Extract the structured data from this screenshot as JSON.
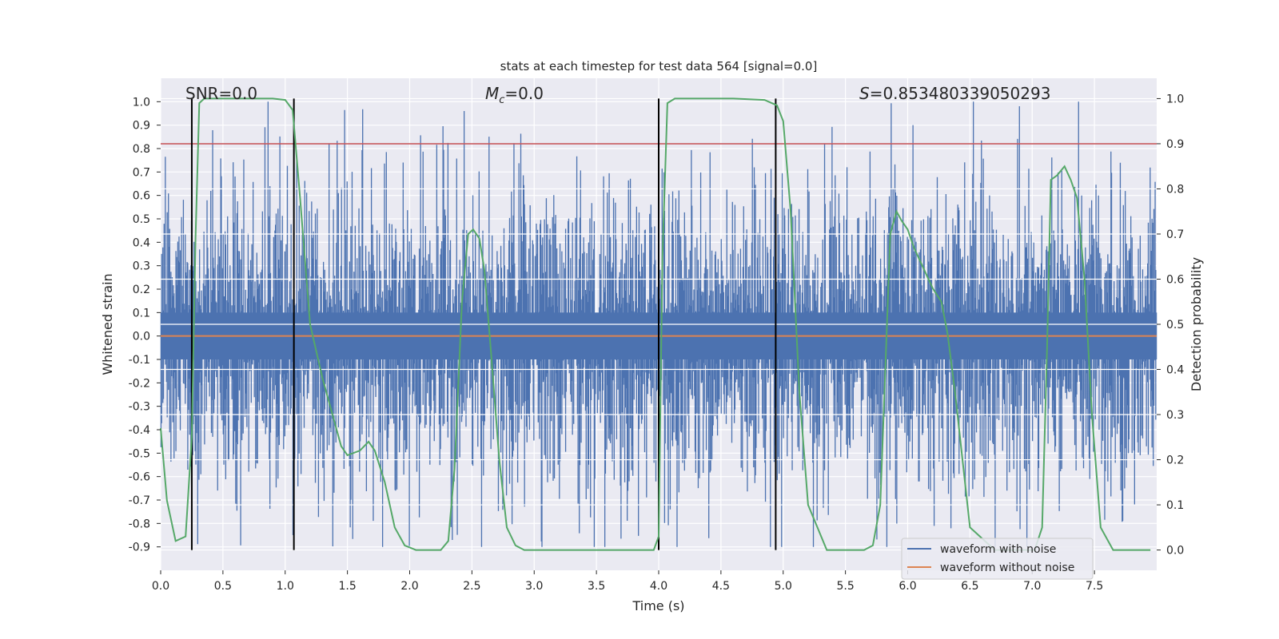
{
  "chart_data": {
    "type": "line",
    "title": "stats at each timestep for test data 564 [signal=0.0]",
    "xlabel": "Time (s)",
    "ylabel_left": "Whitened strain",
    "ylabel_right": "Detection probability",
    "xlim": [
      0.0,
      8.0
    ],
    "ylim_left": [
      -1.0,
      1.1
    ],
    "ylim_right": [
      -0.045,
      1.045
    ],
    "x_ticks": [
      "0.0",
      "0.5",
      "1.0",
      "1.5",
      "2.0",
      "2.5",
      "3.0",
      "3.5",
      "4.0",
      "4.5",
      "5.0",
      "5.5",
      "6.0",
      "6.5",
      "7.0",
      "7.5"
    ],
    "x_tick_values": [
      0.0,
      0.5,
      1.0,
      1.5,
      2.0,
      2.5,
      3.0,
      3.5,
      4.0,
      4.5,
      5.0,
      5.5,
      6.0,
      6.5,
      7.0,
      7.5
    ],
    "y_left_ticks": [
      "1.0",
      "0.9",
      "0.8",
      "0.7",
      "0.6",
      "0.5",
      "0.4",
      "0.3",
      "0.2",
      "0.1",
      "0.0",
      "-0.1",
      "-0.2",
      "-0.3",
      "-0.4",
      "-0.5",
      "-0.6",
      "-0.7",
      "-0.8",
      "-0.9"
    ],
    "y_left_tick_values": [
      1.0,
      0.9,
      0.8,
      0.7,
      0.6,
      0.5,
      0.4,
      0.3,
      0.2,
      0.1,
      0.0,
      -0.1,
      -0.2,
      -0.3,
      -0.4,
      -0.5,
      -0.6,
      -0.7,
      -0.8,
      -0.9
    ],
    "y_right_ticks": [
      "1.0",
      "0.9",
      "0.8",
      "0.7",
      "0.6",
      "0.5",
      "0.4",
      "0.3",
      "0.2",
      "0.1",
      "0.0"
    ],
    "y_right_tick_values": [
      1.0,
      0.9,
      0.8,
      0.7,
      0.6,
      0.5,
      0.4,
      0.3,
      0.2,
      0.1,
      0.0
    ],
    "grid": true,
    "annotations": [
      {
        "text": "SNR=0.0",
        "x": 0.2,
        "y": 1.02
      },
      {
        "text_main": "M",
        "text_sub": "c",
        "text_rest": "=0.0",
        "x": 2.6,
        "y": 1.02
      },
      {
        "text_italic": "S",
        "text_rest": "=0.853480339050293",
        "x": 5.6,
        "y": 1.02
      }
    ],
    "threshold_line": {
      "value": 0.9,
      "axis": "right",
      "color": "#c44e52"
    },
    "vertical_markers": {
      "x": [
        0.25,
        1.07,
        4.0,
        4.94
      ],
      "y_range": [
        0.0,
        1.0
      ],
      "axis": "right",
      "color": "#000000"
    },
    "noise_waveform": {
      "amplitude": 0.3,
      "peak_range": [
        -0.9,
        1.0
      ],
      "samples": 1600
    },
    "series": [
      {
        "name": "waveform with noise",
        "color": "#4c72b0",
        "axis": "left"
      },
      {
        "name": "waveform without noise",
        "color": "#dd8452",
        "axis": "left",
        "values": [
          0.0,
          0.0
        ]
      },
      {
        "color": "#55a868",
        "axis": "right",
        "x": [
          0.0,
          0.05,
          0.12,
          0.2,
          0.25,
          0.28,
          0.31,
          0.35,
          0.5,
          0.7,
          0.9,
          1.0,
          1.06,
          1.12,
          1.2,
          1.3,
          1.38,
          1.45,
          1.5,
          1.6,
          1.67,
          1.72,
          1.8,
          1.88,
          1.96,
          2.05,
          2.15,
          2.25,
          2.31,
          2.36,
          2.42,
          2.47,
          2.51,
          2.56,
          2.6,
          2.65,
          2.72,
          2.78,
          2.85,
          2.92,
          3.0,
          3.5,
          3.9,
          3.96,
          4.0,
          4.03,
          4.07,
          4.13,
          4.3,
          4.6,
          4.85,
          4.95,
          5.0,
          5.06,
          5.13,
          5.2,
          5.35,
          5.55,
          5.65,
          5.72,
          5.78,
          5.82,
          5.86,
          5.91,
          5.95,
          6.0,
          6.05,
          6.1,
          6.2,
          6.27,
          6.32,
          6.38,
          6.5,
          6.7,
          6.9,
          7.02,
          7.08,
          7.12,
          7.15,
          7.2,
          7.26,
          7.31,
          7.36,
          7.42,
          7.48,
          7.55,
          7.65,
          7.8,
          7.95
        ],
        "values": [
          0.27,
          0.11,
          0.02,
          0.03,
          0.25,
          0.69,
          0.99,
          1.0,
          1.0,
          1.0,
          1.0,
          0.997,
          0.975,
          0.78,
          0.5,
          0.38,
          0.3,
          0.23,
          0.21,
          0.22,
          0.24,
          0.22,
          0.15,
          0.05,
          0.01,
          0.0,
          0.0,
          0.0,
          0.02,
          0.18,
          0.55,
          0.7,
          0.71,
          0.69,
          0.62,
          0.45,
          0.2,
          0.05,
          0.01,
          0.0,
          0.0,
          0.0,
          0.0,
          0.0,
          0.03,
          0.65,
          0.99,
          1.0,
          1.0,
          1.0,
          0.997,
          0.985,
          0.95,
          0.75,
          0.35,
          0.1,
          0.0,
          0.0,
          0.0,
          0.01,
          0.1,
          0.4,
          0.7,
          0.75,
          0.73,
          0.71,
          0.67,
          0.64,
          0.58,
          0.55,
          0.48,
          0.35,
          0.05,
          0.0,
          0.0,
          0.0,
          0.05,
          0.45,
          0.82,
          0.83,
          0.85,
          0.82,
          0.78,
          0.6,
          0.3,
          0.05,
          0.0,
          0.0,
          0.0
        ]
      }
    ],
    "legend": {
      "location": "lower right",
      "entries": [
        "waveform with noise",
        "waveform without noise"
      ]
    }
  },
  "colors": {
    "plot_background": "#eaeaf2",
    "grid": "#ffffff",
    "noisy": "#4c72b0",
    "clean": "#dd8452",
    "probability": "#55a868",
    "threshold": "#c44e52"
  }
}
